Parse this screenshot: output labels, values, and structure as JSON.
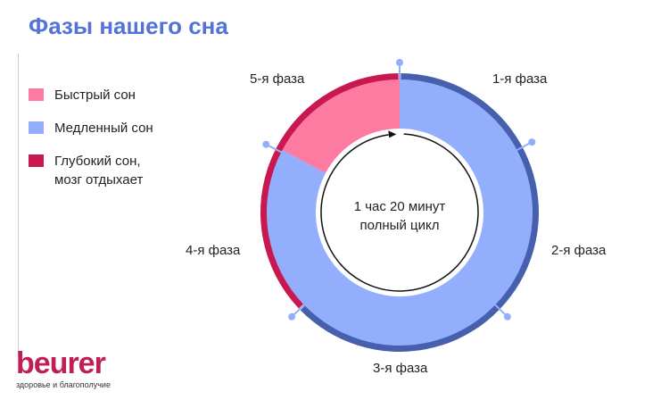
{
  "title": "Фазы нашего сна",
  "legend": [
    {
      "label": "Быстрый сон",
      "color": "#fd7ba0"
    },
    {
      "label": "Медленный сон",
      "color": "#93aefc"
    },
    {
      "label": "Глубокий сон, мозг отдыхает",
      "color": "#c9184f"
    }
  ],
  "center": {
    "line1": "1 час 20 минут",
    "line2": "полный цикл"
  },
  "phases": [
    "1-я фаза",
    "2-я фаза",
    "3-я фаза",
    "4-я фаза",
    "5-я фаза"
  ],
  "colors": {
    "slow": "#93aefc",
    "fast": "#fd7ba0",
    "deep": "#c9184f",
    "outer_slow": "#4760ae",
    "marker": "#93aefc"
  },
  "logo": {
    "brand": "beurer",
    "tagline": "здоровье и благополучие"
  }
}
